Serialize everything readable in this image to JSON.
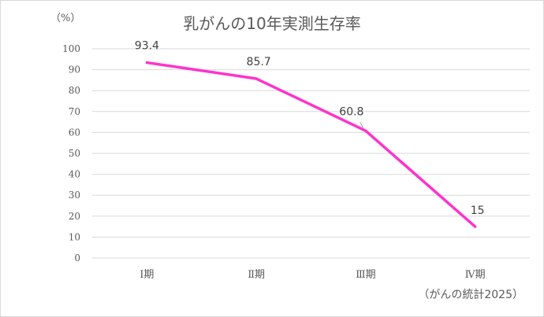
{
  "chart_data": {
    "type": "line",
    "title": "乳がんの10年実測生存率",
    "unit_label": "（%）",
    "xlabel": "",
    "ylabel": "（%）",
    "categories": [
      "Ⅰ期",
      "Ⅱ期",
      "Ⅲ期",
      "Ⅳ期"
    ],
    "series": [
      {
        "name": "10年実測生存率",
        "values": [
          93.4,
          85.7,
          60.8,
          15
        ],
        "color": "#FF33CC"
      }
    ],
    "data_labels": [
      "93.4",
      "85.7",
      "60.8",
      "15"
    ],
    "yticks": [
      "0",
      "10",
      "20",
      "30",
      "40",
      "50",
      "60",
      "70",
      "80",
      "90",
      "100"
    ],
    "ylim": [
      0,
      100
    ],
    "grid": true,
    "legend": "none",
    "source": "（がんの統計2025）"
  },
  "colors": {
    "line": "#FF33CC",
    "grid": "#d9d9d9",
    "text": "#595959"
  }
}
